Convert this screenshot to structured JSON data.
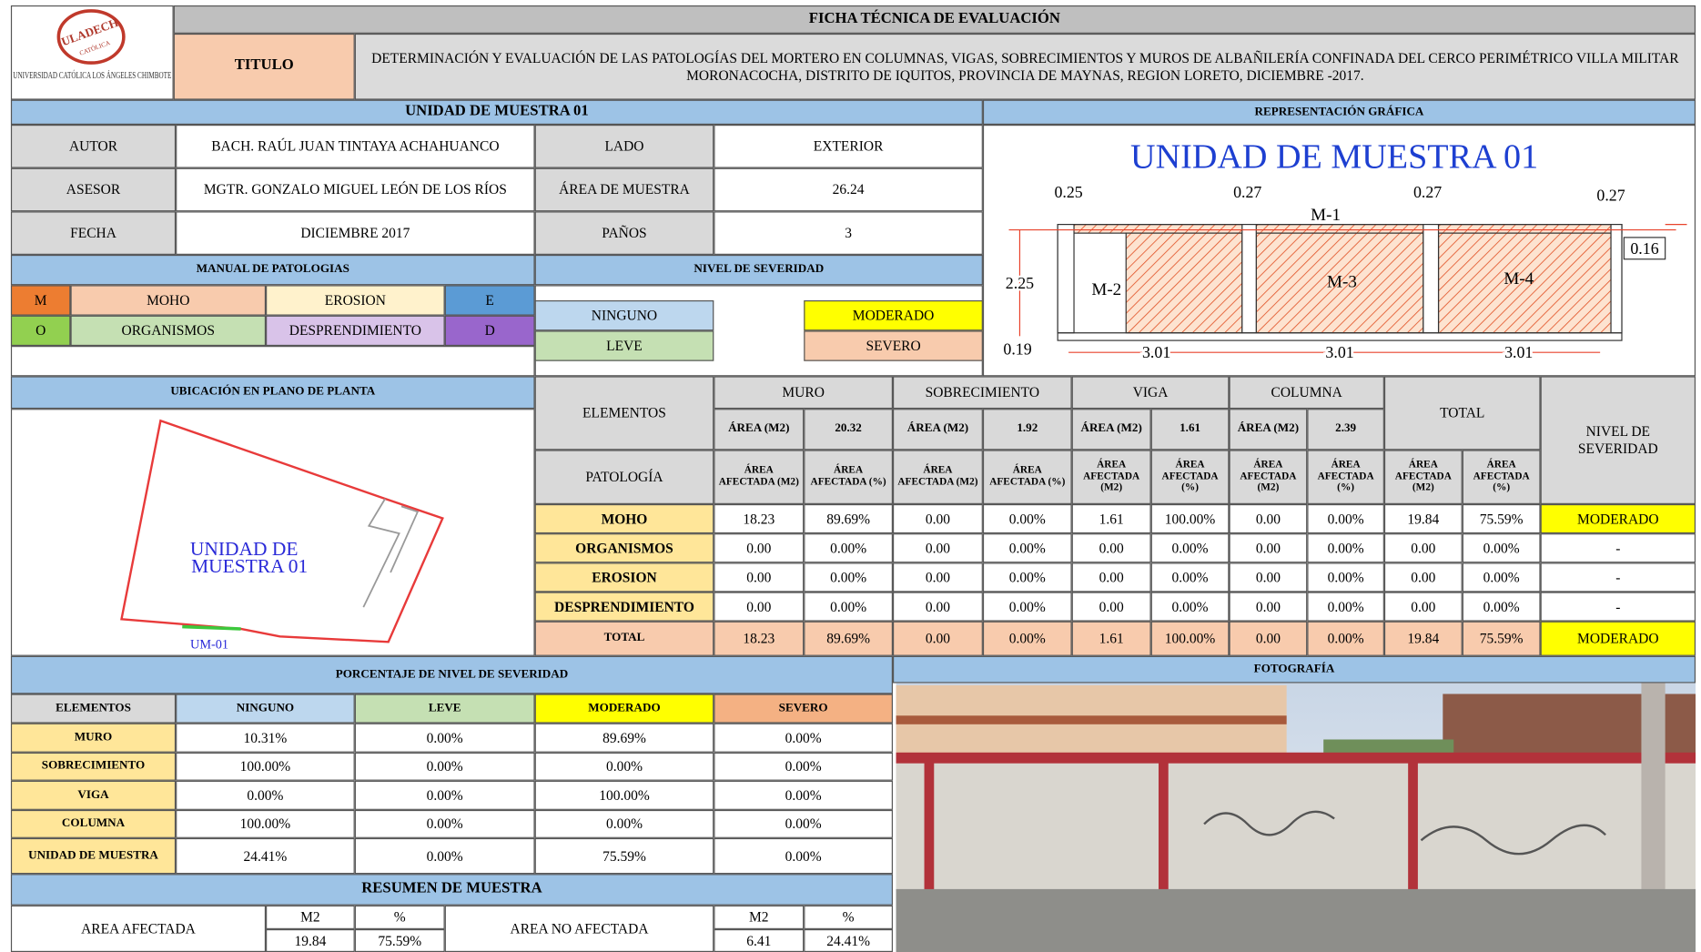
{
  "header": {
    "logo_name": "ULADECH",
    "logo_sub": "CATÓLICA",
    "university": "UNIVERSIDAD CATÓLICA LOS ÁNGELES CHIMBOTE",
    "title": "FICHA TÉCNICA DE EVALUACIÓN",
    "titulo_label": "TITULO",
    "titulo_text": "DETERMINACIÓN Y EVALUACIÓN DE LAS PATOLOGÍAS DEL MORTERO EN COLUMNAS, VIGAS, SOBRECIMIENTOS Y MUROS DE ALBAÑILERÍA CONFINADA DEL CERCO PERIMÉTRICO VILLA MILITAR MORONACOCHA, DISTRITO DE IQUITOS, PROVINCIA DE MAYNAS, REGION LORETO, DICIEMBRE -2017."
  },
  "info": {
    "section": "UNIDAD DE MUESTRA 01",
    "graphic_section": "REPRESENTACIÓN GRÁFICA",
    "rows": [
      [
        "AUTOR",
        "BACH. RAÚL JUAN TINTAYA ACHAHUANCO",
        "LADO",
        "EXTERIOR"
      ],
      [
        "ASESOR",
        "MGTR. GONZALO MIGUEL LEÓN DE LOS RÍOS",
        "ÁREA DE MUESTRA",
        "26.24"
      ],
      [
        "FECHA",
        "DICIEMBRE 2017",
        "PAÑOS",
        "3"
      ]
    ]
  },
  "manual": {
    "title": "MANUAL DE PATOLOGIAS",
    "rows": [
      [
        "M",
        "MOHO",
        "EROSION",
        "E"
      ],
      [
        "O",
        "ORGANISMOS",
        "DESPRENDIMIENTO",
        "D"
      ]
    ]
  },
  "severity_legend": {
    "title": "NIVEL DE SEVERIDAD",
    "items": [
      "NINGUNO",
      "MODERADO",
      "LEVE",
      "SEVERO"
    ]
  },
  "graphic": {
    "heading": "UNIDAD DE MUESTRA 01",
    "top_dims": [
      "0.25",
      "0.27",
      "0.27",
      "0.27"
    ],
    "walls": [
      "M-1",
      "M-2",
      "M-3",
      "M-4"
    ],
    "height": "2.25",
    "beam": "0.16",
    "base": "0.19",
    "spans": [
      "3.01",
      "3.01",
      "3.01"
    ]
  },
  "plan": {
    "title": "UBICACIÓN EN PLANO DE PLANTA",
    "label": [
      "UNIDAD DE",
      "MUESTRA 01"
    ],
    "tag": "UM-01"
  },
  "elements_table": {
    "elements_label": "ELEMENTOS",
    "patologia_label": "PATOLOGÍA",
    "total_label": "TOTAL",
    "severity_label": "NIVEL DE SEVERIDAD",
    "groups": [
      {
        "name": "MURO",
        "area_label": "ÁREA (M2)",
        "area": "20.32"
      },
      {
        "name": "SOBRECIMIENTO",
        "area_label": "ÁREA (M2)",
        "area": "1.92"
      },
      {
        "name": "VIGA",
        "area_label": "ÁREA (M2)",
        "area": "1.61"
      },
      {
        "name": "COLUMNA",
        "area_label": "ÁREA (M2)",
        "area": "2.39"
      }
    ],
    "sub_m2": "ÁREA AFECTADA (M2)",
    "sub_pct": "ÁREA AFECTADA (%)",
    "rows": [
      {
        "name": "MOHO",
        "cells": [
          "18.23",
          "89.69%",
          "0.00",
          "0.00%",
          "1.61",
          "100.00%",
          "0.00",
          "0.00%",
          "19.84",
          "75.59%"
        ],
        "severity": "MODERADO"
      },
      {
        "name": "ORGANISMOS",
        "cells": [
          "0.00",
          "0.00%",
          "0.00",
          "0.00%",
          "0.00",
          "0.00%",
          "0.00",
          "0.00%",
          "0.00",
          "0.00%"
        ],
        "severity": "-"
      },
      {
        "name": "EROSION",
        "cells": [
          "0.00",
          "0.00%",
          "0.00",
          "0.00%",
          "0.00",
          "0.00%",
          "0.00",
          "0.00%",
          "0.00",
          "0.00%"
        ],
        "severity": "-"
      },
      {
        "name": "DESPRENDIMIENTO",
        "cells": [
          "0.00",
          "0.00%",
          "0.00",
          "0.00%",
          "0.00",
          "0.00%",
          "0.00",
          "0.00%",
          "0.00",
          "0.00%"
        ],
        "severity": "-"
      }
    ],
    "total": {
      "name": "TOTAL",
      "cells": [
        "18.23",
        "89.69%",
        "0.00",
        "0.00%",
        "1.61",
        "100.00%",
        "0.00",
        "0.00%",
        "19.84",
        "75.59%"
      ],
      "severity": "MODERADO"
    }
  },
  "percent_table": {
    "title": "PORCENTAJE DE NIVEL DE SEVERIDAD",
    "headers": [
      "ELEMENTOS",
      "NINGUNO",
      "LEVE",
      "MODERADO",
      "SEVERO"
    ],
    "rows": [
      [
        "MURO",
        "10.31%",
        "0.00%",
        "89.69%",
        "0.00%"
      ],
      [
        "SOBRECIMIENTO",
        "100.00%",
        "0.00%",
        "0.00%",
        "0.00%"
      ],
      [
        "VIGA",
        "0.00%",
        "0.00%",
        "100.00%",
        "0.00%"
      ],
      [
        "COLUMNA",
        "100.00%",
        "0.00%",
        "0.00%",
        "0.00%"
      ],
      [
        "UNIDAD DE MUESTRA",
        "24.41%",
        "0.00%",
        "75.59%",
        "0.00%"
      ]
    ]
  },
  "summary": {
    "title": "RESUMEN DE MUESTRA",
    "affected_label": "AREA AFECTADA",
    "unaffected_label": "AREA NO AFECTADA",
    "units": [
      "M2",
      "%"
    ],
    "affected": [
      "19.84",
      "75.59%"
    ],
    "unaffected": [
      "6.41",
      "24.41%"
    ]
  },
  "photo": {
    "title": "FOTOGRAFÍA"
  }
}
